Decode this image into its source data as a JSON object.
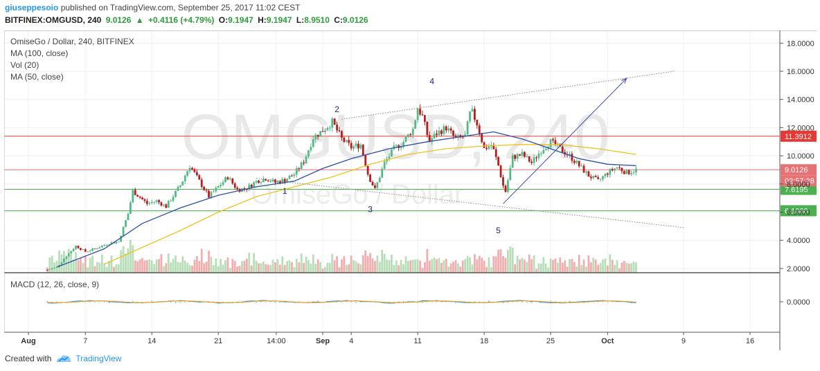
{
  "header": {
    "author": "giuseppesoio",
    "published_text": "published on TradingView.com, September 25, 2017 11:02 CEST",
    "symbol": "BITFINEX:OMGUSD, 240",
    "last": "9.0126",
    "arrow": "▲",
    "change": "+0.4116 (+4.79%)",
    "o_label": "O:",
    "o_value": "9.1947",
    "h_label": "H:",
    "h_value": "9.1947",
    "l_label": "L:",
    "l_value": "8.9510",
    "c_label": "C:",
    "c_value": "9.0126"
  },
  "legend": {
    "title": "OmiseGo / Dollar, 240, BITFINEX",
    "ma100": "MA (100, close)",
    "vol": "Vol (20)",
    "ma50": "MA (50, close)",
    "macd": "MACD (12, 26, close, 9)"
  },
  "watermark": {
    "main": "OMGUSD, 240",
    "sub": "OmiseGo / Dollar"
  },
  "footer": {
    "created_with": "Created with",
    "brand": "TradingView"
  },
  "colors": {
    "up_candle": "#53b987",
    "down_candle": "#b71c1c",
    "ma100": "#2b4fa1",
    "ma50": "#f0c21c",
    "resistance": "#e53935",
    "support": "#4caf50",
    "trendline": "#888888",
    "arrow": "#3949ab",
    "volume_up": "#a5d6a7",
    "volume_down": "#ef9a9a"
  },
  "chart_data": {
    "type": "candlestick",
    "price_axis": {
      "ticks": [
        "18.0000",
        "16.0000",
        "14.0000",
        "12.0000",
        "10.0000",
        "8.0000",
        "6.0000",
        "4.0000",
        "2.0000"
      ],
      "tick_values": [
        18,
        16,
        14,
        12,
        10,
        8,
        6,
        4,
        2
      ],
      "ylim": [
        1.7,
        18.9
      ]
    },
    "time_axis": {
      "labels": [
        "Aug",
        "7",
        "14",
        "21",
        "14:00",
        "Sep",
        "4",
        "11",
        "18",
        "25",
        "Oct",
        "9",
        "16"
      ],
      "label_days": [
        0,
        6,
        13,
        20,
        26.1,
        31,
        34,
        41,
        48,
        55,
        61,
        69,
        76
      ],
      "bold_labels": [
        "Aug",
        "Sep",
        "Oct"
      ],
      "xlim": [
        -1,
        79
      ]
    },
    "horizontal_levels": [
      {
        "value": 11.3912,
        "label": "11.3912",
        "color": "#e53935"
      },
      {
        "value": 9.0126,
        "label": "9.0126",
        "color": "#e57373"
      },
      {
        "value": 7.6195,
        "label": "7.6195",
        "color": "#4caf50"
      },
      {
        "value": 6.1,
        "label": "6.1000",
        "color": "#4caf50"
      }
    ],
    "countdown_label": "02:57:28",
    "wave_labels": [
      {
        "label": "1",
        "day": 27,
        "price": 7.3
      },
      {
        "label": "2",
        "day": 32.5,
        "price": 13.1
      },
      {
        "label": "3",
        "day": 36,
        "price": 6.0
      },
      {
        "label": "4",
        "day": 42.5,
        "price": 15.1
      },
      {
        "label": "5",
        "day": 49.5,
        "price": 4.5
      }
    ],
    "trend_lines": [
      {
        "from": [
          33,
          12.6
        ],
        "to": [
          68,
          16.0
        ],
        "style": "dotted"
      },
      {
        "from": [
          24,
          8.4
        ],
        "to": [
          69,
          4.9
        ],
        "style": "dotted"
      }
    ],
    "arrow": {
      "from": [
        50,
        6.6
      ],
      "to": [
        63,
        15.5
      ]
    },
    "price_path": [
      {
        "day": 2,
        "price": 1.9
      },
      {
        "day": 3,
        "price": 2.1
      },
      {
        "day": 4,
        "price": 2.9
      },
      {
        "day": 5,
        "price": 3.6
      },
      {
        "day": 6,
        "price": 3.2
      },
      {
        "day": 7,
        "price": 3.4
      },
      {
        "day": 8.5,
        "price": 3.8
      },
      {
        "day": 9.5,
        "price": 3.9
      },
      {
        "day": 10.5,
        "price": 5.9
      },
      {
        "day": 11,
        "price": 7.5
      },
      {
        "day": 12.5,
        "price": 6.6
      },
      {
        "day": 13.5,
        "price": 6.8
      },
      {
        "day": 14.5,
        "price": 6.4
      },
      {
        "day": 16,
        "price": 7.9
      },
      {
        "day": 17,
        "price": 9.3
      },
      {
        "day": 18,
        "price": 8.2
      },
      {
        "day": 19,
        "price": 7.1
      },
      {
        "day": 20,
        "price": 7.8
      },
      {
        "day": 21,
        "price": 8.5
      },
      {
        "day": 22,
        "price": 7.6
      },
      {
        "day": 23,
        "price": 7.7
      },
      {
        "day": 24,
        "price": 8.2
      },
      {
        "day": 25,
        "price": 8.4
      },
      {
        "day": 26,
        "price": 8.1
      },
      {
        "day": 27,
        "price": 8.3
      },
      {
        "day": 28,
        "price": 8.7
      },
      {
        "day": 29,
        "price": 9.6
      },
      {
        "day": 30,
        "price": 11.3
      },
      {
        "day": 31,
        "price": 11.8
      },
      {
        "day": 32,
        "price": 12.4
      },
      {
        "day": 33,
        "price": 11.2
      },
      {
        "day": 34,
        "price": 10.6
      },
      {
        "day": 35,
        "price": 10.8
      },
      {
        "day": 35.8,
        "price": 8.6
      },
      {
        "day": 36.5,
        "price": 7.6
      },
      {
        "day": 37.5,
        "price": 9.5
      },
      {
        "day": 38.5,
        "price": 10.5
      },
      {
        "day": 39.5,
        "price": 11.0
      },
      {
        "day": 40.5,
        "price": 11.9
      },
      {
        "day": 41,
        "price": 13.4
      },
      {
        "day": 41.5,
        "price": 12.8
      },
      {
        "day": 42.2,
        "price": 11.0
      },
      {
        "day": 43,
        "price": 11.6
      },
      {
        "day": 44,
        "price": 12.0
      },
      {
        "day": 45,
        "price": 11.2
      },
      {
        "day": 46,
        "price": 11.4
      },
      {
        "day": 46.6,
        "price": 13.3
      },
      {
        "day": 47.3,
        "price": 12.2
      },
      {
        "day": 48,
        "price": 10.5
      },
      {
        "day": 48.8,
        "price": 10.8
      },
      {
        "day": 49.5,
        "price": 9.3
      },
      {
        "day": 50.2,
        "price": 7.3
      },
      {
        "day": 51,
        "price": 9.9
      },
      {
        "day": 52,
        "price": 10.1
      },
      {
        "day": 53,
        "price": 9.5
      },
      {
        "day": 54,
        "price": 10.4
      },
      {
        "day": 55,
        "price": 11.0
      },
      {
        "day": 56,
        "price": 10.5
      },
      {
        "day": 57,
        "price": 10.0
      },
      {
        "day": 58,
        "price": 9.3
      },
      {
        "day": 59,
        "price": 8.6
      },
      {
        "day": 60,
        "price": 8.2
      },
      {
        "day": 61,
        "price": 8.8
      },
      {
        "day": 62,
        "price": 9.2
      },
      {
        "day": 63,
        "price": 8.8
      },
      {
        "day": 64,
        "price": 9.0
      }
    ],
    "ma100_path": [
      {
        "day": 3,
        "price": 2.1
      },
      {
        "day": 8,
        "price": 3.4
      },
      {
        "day": 12,
        "price": 5.2
      },
      {
        "day": 16,
        "price": 6.3
      },
      {
        "day": 20,
        "price": 7.2
      },
      {
        "day": 24,
        "price": 7.8
      },
      {
        "day": 28,
        "price": 8.2
      },
      {
        "day": 31,
        "price": 9.1
      },
      {
        "day": 34,
        "price": 9.8
      },
      {
        "day": 38,
        "price": 10.5
      },
      {
        "day": 42,
        "price": 11.0
      },
      {
        "day": 46,
        "price": 11.4
      },
      {
        "day": 49,
        "price": 11.7
      },
      {
        "day": 52,
        "price": 11.2
      },
      {
        "day": 55,
        "price": 10.5
      },
      {
        "day": 58,
        "price": 9.8
      },
      {
        "day": 61,
        "price": 9.4
      },
      {
        "day": 64,
        "price": 9.3
      }
    ],
    "ma50_path": [
      {
        "day": 8,
        "price": 2.3
      },
      {
        "day": 12,
        "price": 3.5
      },
      {
        "day": 16,
        "price": 4.7
      },
      {
        "day": 20,
        "price": 6.0
      },
      {
        "day": 24,
        "price": 7.1
      },
      {
        "day": 28,
        "price": 7.8
      },
      {
        "day": 32,
        "price": 8.5
      },
      {
        "day": 36,
        "price": 9.4
      },
      {
        "day": 40,
        "price": 10.1
      },
      {
        "day": 44,
        "price": 10.5
      },
      {
        "day": 48,
        "price": 10.7
      },
      {
        "day": 52,
        "price": 10.8
      },
      {
        "day": 56,
        "price": 10.8
      },
      {
        "day": 60,
        "price": 10.5
      },
      {
        "day": 64,
        "price": 10.1
      }
    ],
    "macd": {
      "zero_label": "0.0000",
      "zero_value": 0
    }
  }
}
